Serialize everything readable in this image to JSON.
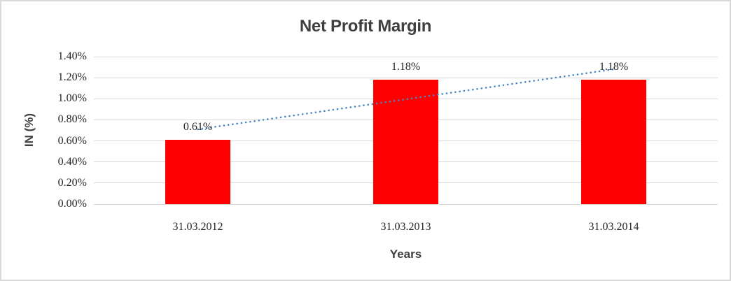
{
  "chart_data": {
    "type": "bar",
    "title": "Net Profit Margin",
    "xlabel": "Years",
    "ylabel": "IN (%)",
    "categories": [
      "31.03.2012",
      "31.03.2013",
      "31.03.2014"
    ],
    "values": [
      0.61,
      1.18,
      1.18
    ],
    "data_labels": [
      "0.61%",
      "1.18%",
      "1.18%"
    ],
    "y_ticks": [
      "0.00%",
      "0.20%",
      "0.40%",
      "0.60%",
      "0.80%",
      "1.00%",
      "1.20%",
      "1.40%"
    ],
    "ylim": [
      0,
      1.4
    ],
    "grid": true,
    "legend": "none",
    "colors": {
      "bar": "#ff0000",
      "trendline": "#4a86c6",
      "gridline": "#d9d9d9",
      "border": "#d9d9d9",
      "title_text": "#3f3f3f",
      "label_text": "#262626"
    },
    "trendline": {
      "type": "linear",
      "style": "dotted",
      "fit_values": [
        0.71,
        1.28
      ]
    }
  }
}
